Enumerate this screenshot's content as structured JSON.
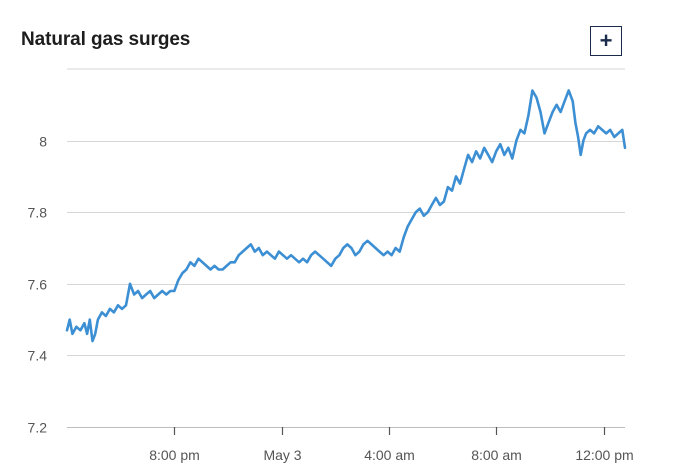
{
  "header": {
    "title": "Natural gas surges",
    "expand_label": "+"
  },
  "colors": {
    "line": "#3d8fd4",
    "grid": "#d6d6d6",
    "title": "#1d1d1d",
    "button_border": "#1b2b4b"
  },
  "icons": {
    "expand": "plus-icon"
  },
  "chart_data": {
    "type": "line",
    "title": "Natural gas surges",
    "xlabel": "",
    "ylabel": "",
    "ylim": [
      7.2,
      8.2
    ],
    "grid": "horizontal",
    "y_ticks": [
      {
        "value": 7.2,
        "label": "7.2"
      },
      {
        "value": 7.4,
        "label": "7.4"
      },
      {
        "value": 7.6,
        "label": "7.6"
      },
      {
        "value": 7.8,
        "label": "7.8"
      },
      {
        "value": 8.0,
        "label": "8"
      }
    ],
    "x_axis": {
      "unit": "hours since 4:00 pm, May 2",
      "range": [
        0,
        20.8
      ],
      "ticks": [
        {
          "value": 4,
          "label": "8:00 pm"
        },
        {
          "value": 8,
          "label": "May 3"
        },
        {
          "value": 12,
          "label": "4:00 am"
        },
        {
          "value": 16,
          "label": "8:00 am"
        },
        {
          "value": 20,
          "label": "12:00 pm"
        }
      ]
    },
    "series": [
      {
        "values": [
          [
            0.0,
            7.47
          ],
          [
            0.1,
            7.5
          ],
          [
            0.2,
            7.46
          ],
          [
            0.35,
            7.48
          ],
          [
            0.5,
            7.47
          ],
          [
            0.65,
            7.49
          ],
          [
            0.75,
            7.46
          ],
          [
            0.85,
            7.5
          ],
          [
            0.95,
            7.44
          ],
          [
            1.05,
            7.46
          ],
          [
            1.15,
            7.5
          ],
          [
            1.3,
            7.52
          ],
          [
            1.45,
            7.51
          ],
          [
            1.6,
            7.53
          ],
          [
            1.75,
            7.52
          ],
          [
            1.9,
            7.54
          ],
          [
            2.05,
            7.53
          ],
          [
            2.2,
            7.54
          ],
          [
            2.35,
            7.6
          ],
          [
            2.5,
            7.57
          ],
          [
            2.65,
            7.58
          ],
          [
            2.8,
            7.56
          ],
          [
            2.95,
            7.57
          ],
          [
            3.1,
            7.58
          ],
          [
            3.25,
            7.56
          ],
          [
            3.4,
            7.57
          ],
          [
            3.55,
            7.58
          ],
          [
            3.7,
            7.57
          ],
          [
            3.85,
            7.58
          ],
          [
            4.0,
            7.58
          ],
          [
            4.15,
            7.61
          ],
          [
            4.3,
            7.63
          ],
          [
            4.45,
            7.64
          ],
          [
            4.6,
            7.66
          ],
          [
            4.75,
            7.65
          ],
          [
            4.9,
            7.67
          ],
          [
            5.05,
            7.66
          ],
          [
            5.2,
            7.65
          ],
          [
            5.35,
            7.64
          ],
          [
            5.5,
            7.65
          ],
          [
            5.65,
            7.64
          ],
          [
            5.8,
            7.64
          ],
          [
            5.95,
            7.65
          ],
          [
            6.1,
            7.66
          ],
          [
            6.25,
            7.66
          ],
          [
            6.4,
            7.68
          ],
          [
            6.55,
            7.69
          ],
          [
            6.7,
            7.7
          ],
          [
            6.85,
            7.71
          ],
          [
            7.0,
            7.69
          ],
          [
            7.15,
            7.7
          ],
          [
            7.3,
            7.68
          ],
          [
            7.45,
            7.69
          ],
          [
            7.6,
            7.68
          ],
          [
            7.75,
            7.67
          ],
          [
            7.9,
            7.69
          ],
          [
            8.05,
            7.68
          ],
          [
            8.2,
            7.67
          ],
          [
            8.35,
            7.68
          ],
          [
            8.5,
            7.67
          ],
          [
            8.65,
            7.66
          ],
          [
            8.8,
            7.67
          ],
          [
            8.95,
            7.66
          ],
          [
            9.1,
            7.68
          ],
          [
            9.25,
            7.69
          ],
          [
            9.4,
            7.68
          ],
          [
            9.55,
            7.67
          ],
          [
            9.7,
            7.66
          ],
          [
            9.85,
            7.65
          ],
          [
            10.0,
            7.67
          ],
          [
            10.15,
            7.68
          ],
          [
            10.3,
            7.7
          ],
          [
            10.45,
            7.71
          ],
          [
            10.6,
            7.7
          ],
          [
            10.75,
            7.68
          ],
          [
            10.9,
            7.69
          ],
          [
            11.05,
            7.71
          ],
          [
            11.2,
            7.72
          ],
          [
            11.35,
            7.71
          ],
          [
            11.5,
            7.7
          ],
          [
            11.65,
            7.69
          ],
          [
            11.8,
            7.68
          ],
          [
            11.95,
            7.69
          ],
          [
            12.1,
            7.68
          ],
          [
            12.25,
            7.7
          ],
          [
            12.4,
            7.69
          ],
          [
            12.55,
            7.73
          ],
          [
            12.7,
            7.76
          ],
          [
            12.85,
            7.78
          ],
          [
            13.0,
            7.8
          ],
          [
            13.15,
            7.81
          ],
          [
            13.3,
            7.79
          ],
          [
            13.45,
            7.8
          ],
          [
            13.6,
            7.82
          ],
          [
            13.75,
            7.84
          ],
          [
            13.9,
            7.82
          ],
          [
            14.05,
            7.83
          ],
          [
            14.2,
            7.87
          ],
          [
            14.35,
            7.86
          ],
          [
            14.5,
            7.9
          ],
          [
            14.65,
            7.88
          ],
          [
            14.8,
            7.92
          ],
          [
            14.95,
            7.96
          ],
          [
            15.1,
            7.94
          ],
          [
            15.25,
            7.97
          ],
          [
            15.4,
            7.95
          ],
          [
            15.55,
            7.98
          ],
          [
            15.7,
            7.96
          ],
          [
            15.85,
            7.94
          ],
          [
            16.0,
            7.97
          ],
          [
            16.15,
            7.99
          ],
          [
            16.3,
            7.96
          ],
          [
            16.45,
            7.98
          ],
          [
            16.6,
            7.95
          ],
          [
            16.75,
            8.0
          ],
          [
            16.9,
            8.03
          ],
          [
            17.05,
            8.02
          ],
          [
            17.2,
            8.07
          ],
          [
            17.35,
            8.14
          ],
          [
            17.5,
            8.12
          ],
          [
            17.65,
            8.08
          ],
          [
            17.8,
            8.02
          ],
          [
            17.95,
            8.05
          ],
          [
            18.1,
            8.08
          ],
          [
            18.25,
            8.1
          ],
          [
            18.4,
            8.08
          ],
          [
            18.55,
            8.11
          ],
          [
            18.7,
            8.14
          ],
          [
            18.85,
            8.11
          ],
          [
            18.95,
            8.05
          ],
          [
            19.05,
            8.01
          ],
          [
            19.15,
            7.96
          ],
          [
            19.25,
            8.0
          ],
          [
            19.35,
            8.02
          ],
          [
            19.5,
            8.03
          ],
          [
            19.65,
            8.02
          ],
          [
            19.8,
            8.04
          ],
          [
            19.95,
            8.03
          ],
          [
            20.1,
            8.02
          ],
          [
            20.25,
            8.03
          ],
          [
            20.4,
            8.01
          ],
          [
            20.55,
            8.02
          ],
          [
            20.7,
            8.03
          ],
          [
            20.8,
            7.98
          ]
        ]
      }
    ]
  }
}
